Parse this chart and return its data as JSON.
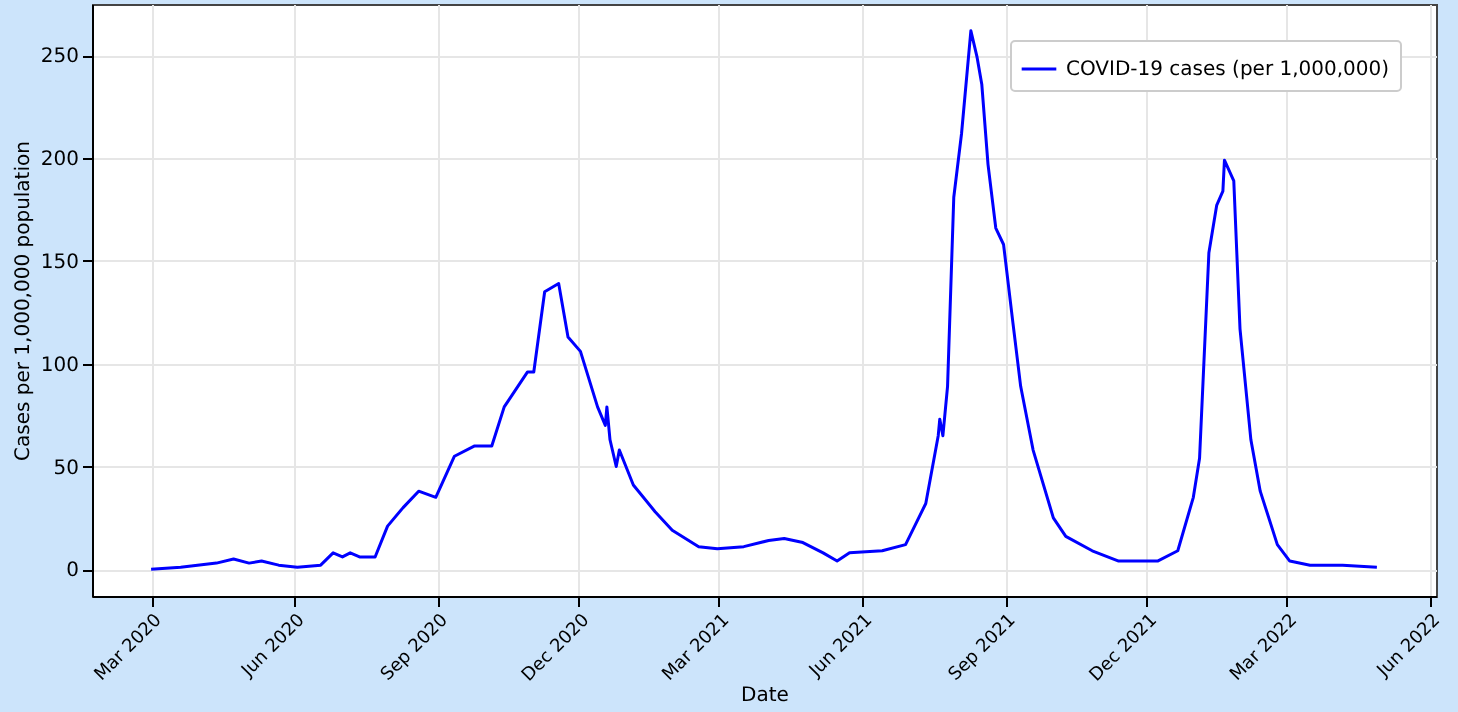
{
  "chart_data": {
    "type": "line",
    "xlabel": "Date",
    "ylabel": "Cases per 1,000,000 population",
    "x": [
      "2020-03-01",
      "2020-03-20",
      "2020-04-12",
      "2020-04-23",
      "2020-05-03",
      "2020-05-11",
      "2020-05-22",
      "2020-06-03",
      "2020-06-18",
      "2020-06-26",
      "2020-07-02",
      "2020-07-07",
      "2020-07-13",
      "2020-07-23",
      "2020-07-31",
      "2020-08-10",
      "2020-08-20",
      "2020-08-31",
      "2020-09-12",
      "2020-09-25",
      "2020-10-06",
      "2020-10-14",
      "2020-10-29",
      "2020-11-02",
      "2020-11-09",
      "2020-11-18",
      "2020-11-24",
      "2020-12-02",
      "2020-12-13",
      "2020-12-18",
      "2020-12-19",
      "2020-12-21",
      "2020-12-25",
      "2020-12-27",
      "2021-01-05",
      "2021-01-19",
      "2021-01-30",
      "2021-02-16",
      "2021-02-28",
      "2021-03-17",
      "2021-04-02",
      "2021-04-12",
      "2021-04-24",
      "2021-05-07",
      "2021-05-16",
      "2021-05-24",
      "2021-06-14",
      "2021-06-29",
      "2021-07-12",
      "2021-07-20",
      "2021-07-21",
      "2021-07-23",
      "2021-07-26",
      "2021-07-30",
      "2021-08-04",
      "2021-08-10",
      "2021-08-14",
      "2021-08-17",
      "2021-08-21",
      "2021-08-26",
      "2021-08-31",
      "2021-09-06",
      "2021-09-11",
      "2021-09-19",
      "2021-10-02",
      "2021-10-10",
      "2021-10-27",
      "2021-11-13",
      "2021-12-08",
      "2021-12-21",
      "2021-12-31",
      "2022-01-04",
      "2022-01-10",
      "2022-01-15",
      "2022-01-19",
      "2022-01-20",
      "2022-01-26",
      "2022-01-30",
      "2022-02-06",
      "2022-02-12",
      "2022-02-23",
      "2022-03-03",
      "2022-03-16",
      "2022-04-06",
      "2022-04-28"
    ],
    "series": [
      {
        "name": "COVID-19 cases (per 1,000,000)",
        "color": "#0000ff",
        "values": [
          0,
          1,
          3,
          5,
          3,
          4,
          2,
          1,
          2,
          8,
          6,
          8,
          6,
          6,
          21,
          30,
          38,
          35,
          55,
          60,
          60,
          79,
          96,
          96,
          135,
          139,
          113,
          106,
          79,
          70,
          79,
          63,
          50,
          58,
          41,
          28,
          19,
          11,
          10,
          11,
          14,
          15,
          13,
          8,
          4,
          8,
          9,
          12,
          32,
          65,
          73,
          65,
          89,
          181,
          212,
          262,
          249,
          236,
          197,
          166,
          158,
          120,
          89,
          58,
          25,
          16,
          9,
          4,
          4,
          9,
          35,
          54,
          154,
          177,
          184,
          199,
          189,
          117,
          63,
          38,
          12,
          4,
          2,
          2,
          1
        ]
      }
    ],
    "xlim": [
      "2020-01-23",
      "2022-06-05"
    ],
    "xticks": [
      {
        "value": "2020-03-01",
        "label": "Mar 2020"
      },
      {
        "value": "2020-06-01",
        "label": "Jun 2020"
      },
      {
        "value": "2020-09-01",
        "label": "Sep 2020"
      },
      {
        "value": "2020-12-01",
        "label": "Dec 2020"
      },
      {
        "value": "2021-03-01",
        "label": "Mar 2021"
      },
      {
        "value": "2021-06-01",
        "label": "Jun 2021"
      },
      {
        "value": "2021-09-01",
        "label": "Sep 2021"
      },
      {
        "value": "2021-12-01",
        "label": "Dec 2021"
      },
      {
        "value": "2022-03-01",
        "label": "Mar 2022"
      },
      {
        "value": "2022-06-01",
        "label": "Jun 2022"
      }
    ],
    "ylim": [
      -13,
      275
    ],
    "yticks": [
      0,
      50,
      100,
      150,
      200,
      250
    ],
    "grid": true,
    "legend": "top right",
    "line_style": "solid"
  }
}
